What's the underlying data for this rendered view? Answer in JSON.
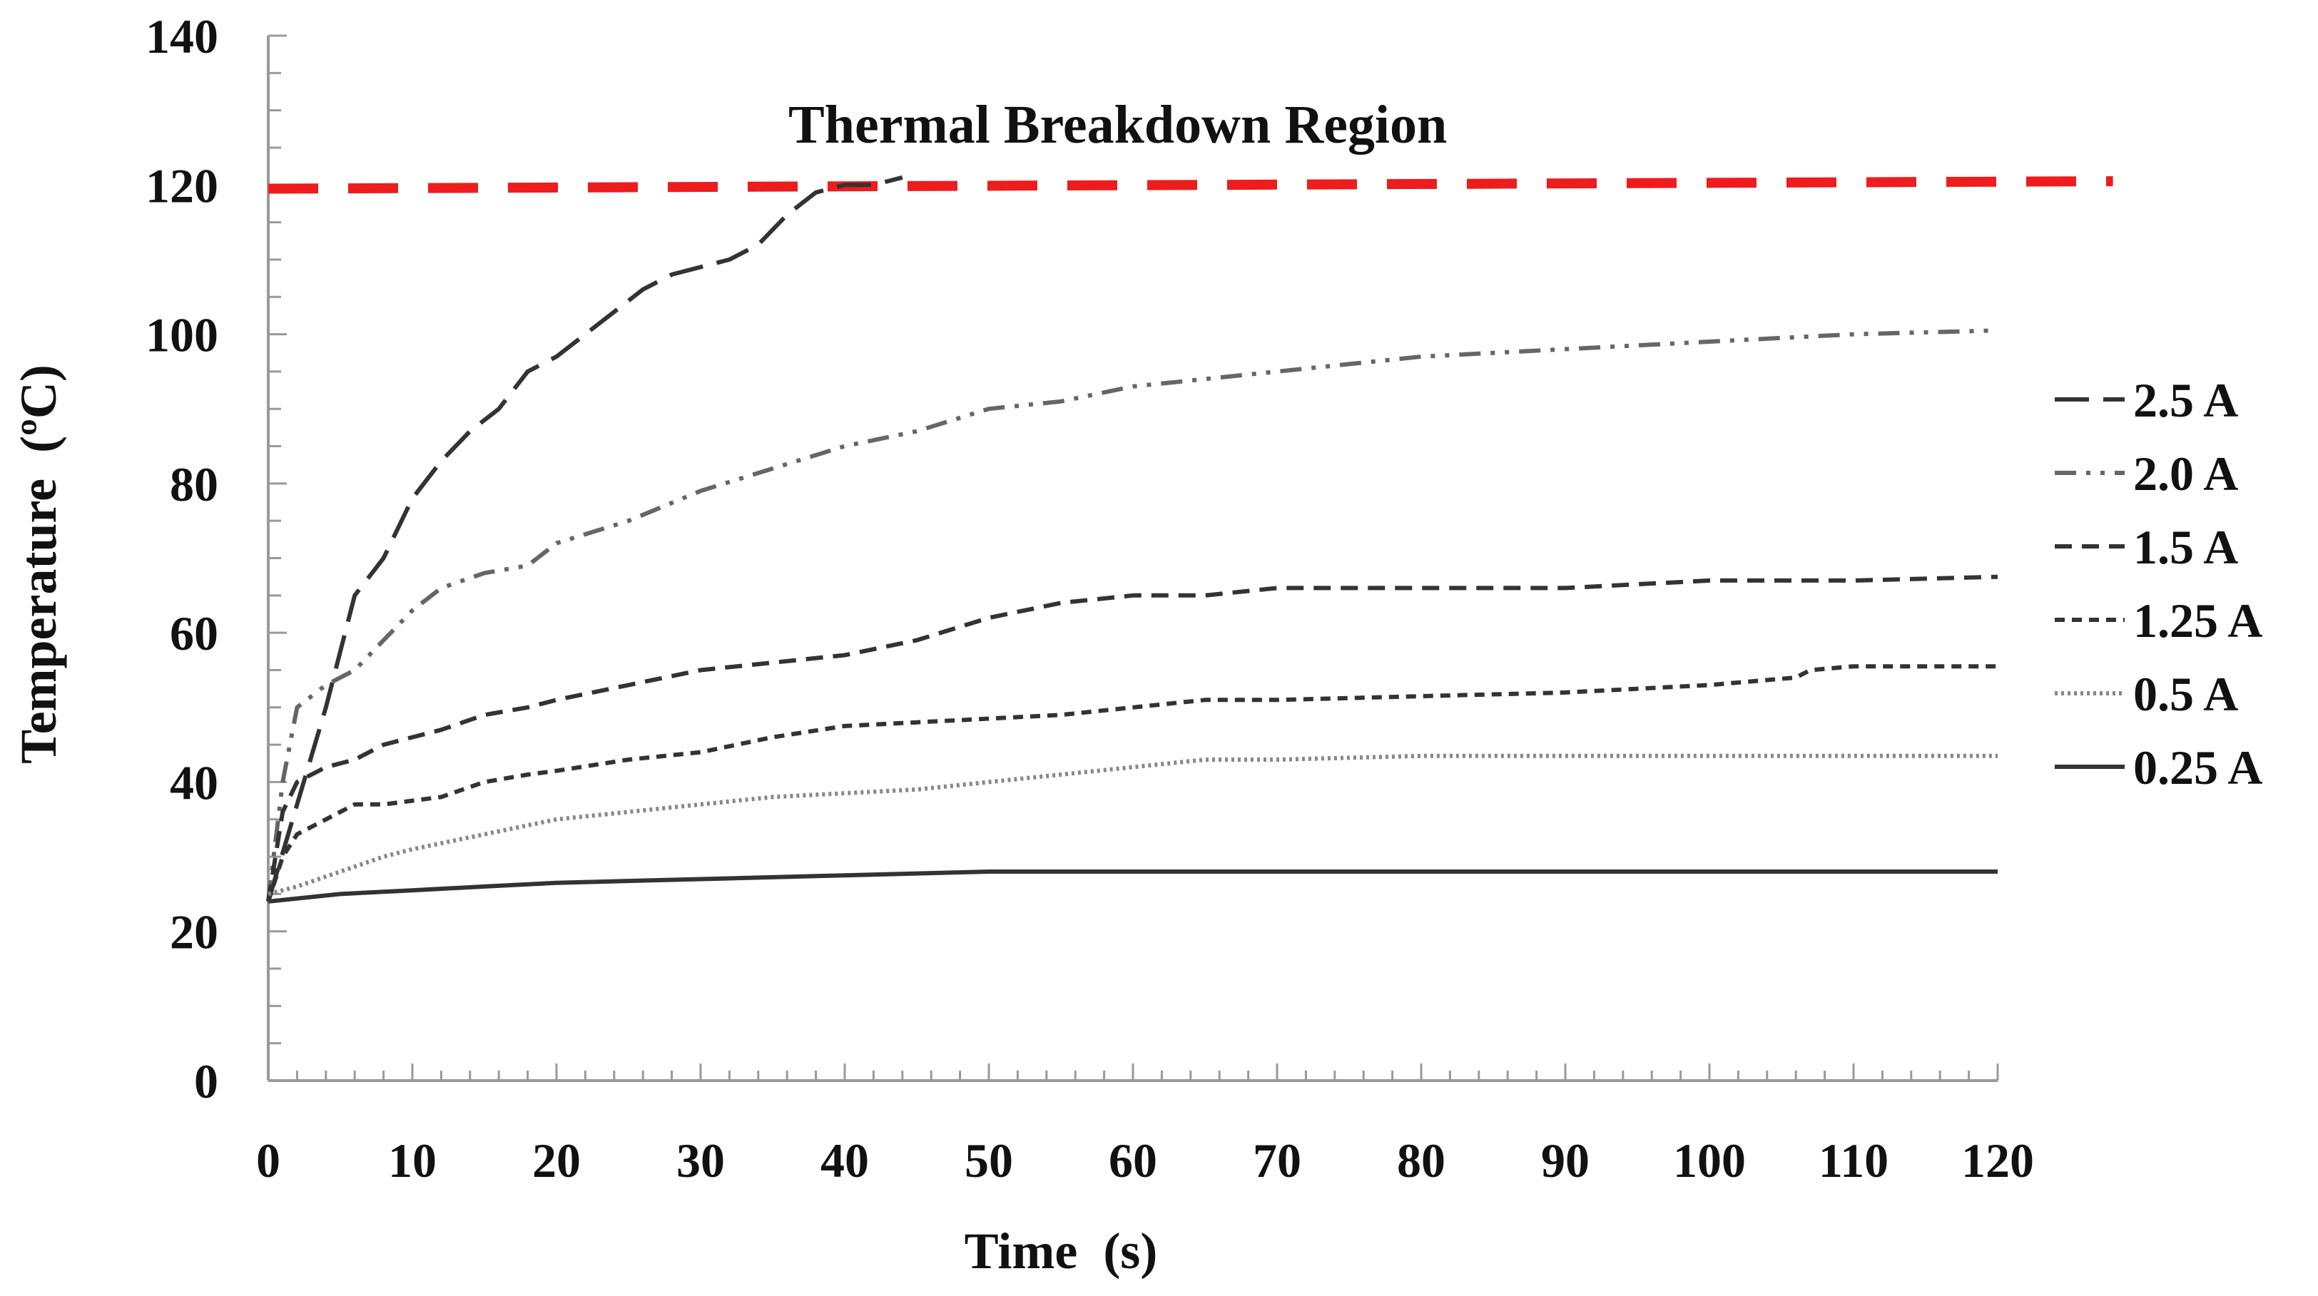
{
  "chart_data": {
    "type": "line",
    "title": "",
    "xlabel": "Time  (s)",
    "ylabel": "Temperature  (ºC)",
    "xlim": [
      0,
      120
    ],
    "ylim": [
      0,
      140
    ],
    "xticks": [
      0,
      10,
      20,
      30,
      40,
      50,
      60,
      70,
      80,
      90,
      100,
      110,
      120
    ],
    "yticks": [
      0,
      20,
      40,
      60,
      80,
      100,
      120,
      140
    ],
    "grid": false,
    "legend_position": "right",
    "annotation": "Thermal Breakdown Region",
    "threshold": {
      "y_start": 119.5,
      "y_end": 120.5,
      "x_start": 0,
      "x_end": 128,
      "color": "#ee1c1c"
    },
    "series": [
      {
        "name": "2.5 A",
        "dash": "long-dash",
        "color": "#333333",
        "x": [
          0,
          2,
          4,
          6,
          8,
          10,
          12,
          14,
          16,
          18,
          20,
          22,
          24,
          26,
          28,
          30,
          32,
          34,
          36,
          38,
          40,
          42,
          44
        ],
        "y": [
          24,
          37,
          50,
          65,
          70,
          78,
          83,
          87,
          90,
          95,
          97,
          100,
          103,
          106,
          108,
          109,
          110,
          112,
          116,
          119,
          120,
          120,
          121
        ]
      },
      {
        "name": "2.0 A",
        "dash": "dash-dot-dot",
        "color": "#666666",
        "x": [
          0,
          1,
          2,
          4,
          6,
          8,
          10,
          12,
          15,
          18,
          20,
          25,
          30,
          35,
          40,
          45,
          50,
          55,
          60,
          65,
          70,
          80,
          90,
          100,
          110,
          120
        ],
        "y": [
          24,
          40,
          50,
          53,
          55,
          59,
          63,
          66,
          68,
          69,
          72,
          75,
          79,
          82,
          85,
          87,
          90,
          91,
          93,
          94,
          95,
          97,
          98,
          99,
          100,
          100.5
        ]
      },
      {
        "name": "1.5 A",
        "dash": "dash",
        "color": "#333333",
        "x": [
          0,
          1,
          2,
          4,
          6,
          8,
          10,
          12,
          15,
          18,
          20,
          25,
          30,
          35,
          40,
          45,
          50,
          55,
          60,
          65,
          70,
          80,
          90,
          100,
          110,
          120
        ],
        "y": [
          24,
          36,
          40,
          42,
          43,
          45,
          46,
          47,
          49,
          50,
          51,
          53,
          55,
          56,
          57,
          59,
          62,
          64,
          65,
          65,
          66,
          66,
          66,
          67,
          67,
          67.5
        ]
      },
      {
        "name": "1.25 A",
        "dash": "short-dash",
        "color": "#333333",
        "x": [
          0,
          1,
          2,
          4,
          6,
          8,
          10,
          12,
          15,
          18,
          20,
          25,
          30,
          35,
          40,
          45,
          50,
          55,
          60,
          65,
          70,
          80,
          90,
          100,
          106,
          107,
          110,
          120
        ],
        "y": [
          24,
          30,
          33,
          35,
          37,
          37,
          37.5,
          38,
          40,
          41,
          41.5,
          43,
          44,
          46,
          47.5,
          48,
          48.5,
          49,
          50,
          51,
          51,
          51.5,
          52,
          53,
          54,
          55,
          55.5,
          55.5
        ]
      },
      {
        "name": "0.5 A",
        "dash": "dotted",
        "color": "#888888",
        "x": [
          0,
          2,
          5,
          8,
          10,
          15,
          20,
          25,
          30,
          35,
          40,
          45,
          50,
          55,
          60,
          65,
          70,
          80,
          90,
          100,
          110,
          120
        ],
        "y": [
          25,
          26,
          28,
          30,
          31,
          33,
          35,
          36,
          37,
          38,
          38.5,
          39,
          40,
          41,
          42,
          43,
          43,
          43.5,
          43.5,
          43.5,
          43.5,
          43.5
        ]
      },
      {
        "name": "0.25 A",
        "dash": "solid",
        "color": "#333333",
        "x": [
          0,
          5,
          10,
          15,
          20,
          30,
          40,
          50,
          60,
          70,
          80,
          90,
          100,
          110,
          120
        ],
        "y": [
          24,
          25,
          25.5,
          26,
          26.5,
          27,
          27.5,
          28,
          28,
          28,
          28,
          28,
          28,
          28,
          28
        ]
      }
    ]
  }
}
